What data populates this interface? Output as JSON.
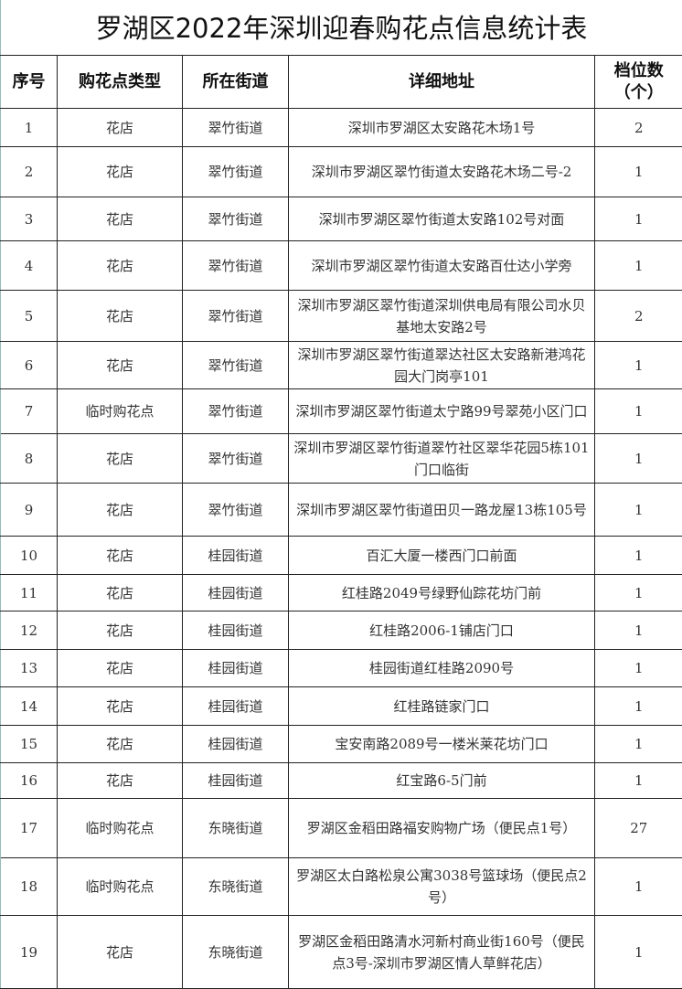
{
  "title": "罗湖区2022年深圳迎春购花点信息统计表",
  "headers": [
    "序号",
    "购花点类型",
    "所在街道",
    "详细地址",
    "档位数（个）"
  ],
  "rows": [
    [
      "1",
      "花店",
      "翠竹街道",
      "深圳市罗湖区太安路花木场1号",
      "2"
    ],
    [
      "2",
      "花店",
      "翠竹街道",
      "深圳市罗湖区翠竹街道太安路花木场二号-2",
      "1"
    ],
    [
      "3",
      "花店",
      "翠竹街道",
      "深圳市罗湖区翠竹街道太安路102号对面",
      "1"
    ],
    [
      "4",
      "花店",
      "翠竹街道",
      "深圳市罗湖区翠竹街道太安路百仕达小学旁",
      "1"
    ],
    [
      "5",
      "花店",
      "翠竹街道",
      "深圳市罗湖区翠竹街道深圳供电局有限公司水贝基地太安路2号",
      "2"
    ],
    [
      "6",
      "花店",
      "翠竹街道",
      "深圳市罗湖区翠竹街道翠达社区太安路新港鸿花园大门岗亭101",
      "1"
    ],
    [
      "7",
      "临时购花点",
      "翠竹街道",
      "深圳市罗湖区翠竹街道太宁路99号翠苑小区门口",
      "1"
    ],
    [
      "8",
      "花店",
      "翠竹街道",
      "深圳市罗湖区翠竹街道翠竹社区翠华花园5栋101门口临街",
      "1"
    ],
    [
      "9",
      "花店",
      "翠竹街道",
      "深圳市罗湖区翠竹街道田贝一路龙屋13栋105号",
      "1"
    ],
    [
      "10",
      "花店",
      "桂园街道",
      "百汇大厦一楼西门口前面",
      "1"
    ],
    [
      "11",
      "花店",
      "桂园街道",
      "红桂路2049号绿野仙踪花坊门前",
      "1"
    ],
    [
      "12",
      "花店",
      "桂园街道",
      "红桂路2006-1铺店门口",
      "1"
    ],
    [
      "13",
      "花店",
      "桂园街道",
      "桂园街道红桂路2090号",
      "1"
    ],
    [
      "14",
      "花店",
      "桂园街道",
      "红桂路链家门口",
      "1"
    ],
    [
      "15",
      "花店",
      "桂园街道",
      "宝安南路2089号一楼米莱花坊门口",
      "1"
    ],
    [
      "16",
      "花店",
      "桂园街道",
      "红宝路6-5门前",
      "1"
    ],
    [
      "17",
      "临时购花点",
      "东晓街道",
      "罗湖区金稻田路福安购物广场（便民点1号）",
      "27"
    ],
    [
      "18",
      "临时购花点",
      "东晓街道",
      "罗湖区太白路松泉公寓3038号篮球场（便民点2号）",
      "1"
    ],
    [
      "19",
      "花店",
      "东晓街道",
      "罗湖区金稻田路清水河新村商业街160号（便民点3号-深圳市罗湖区情人草鲜花店）",
      "1"
    ]
  ]
}
